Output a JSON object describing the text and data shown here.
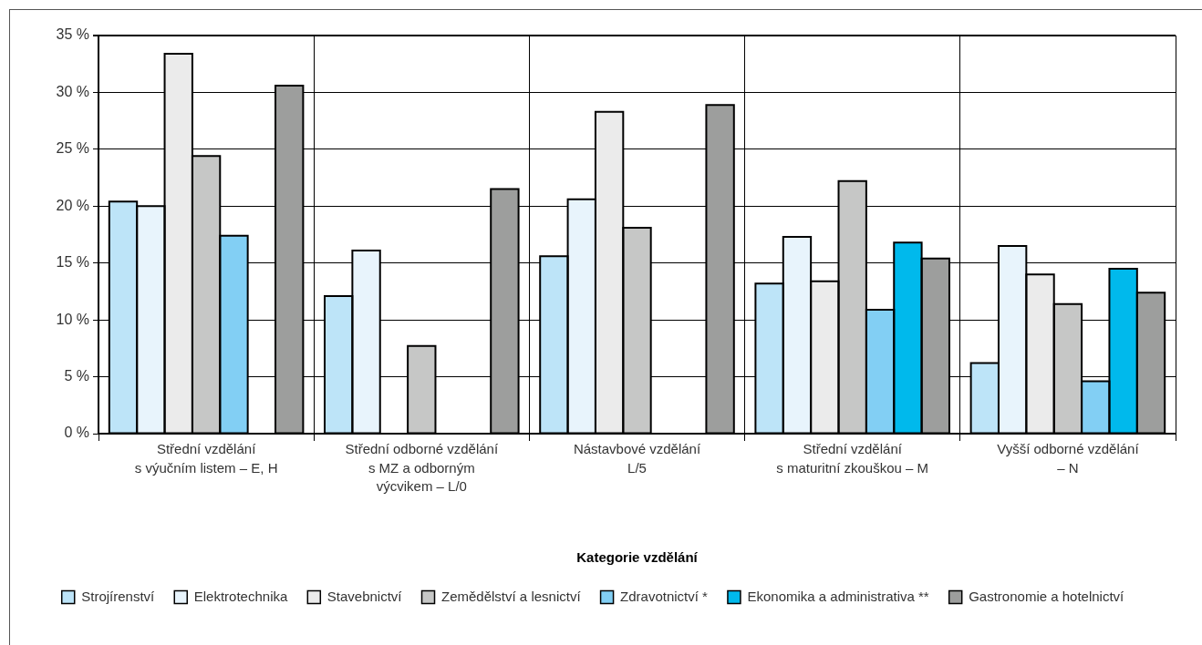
{
  "chart_data": {
    "type": "bar",
    "categories": [
      "Střední vzdělání\ns výučním listem – E, H",
      "Střední odborné vzdělání\ns MZ a odborným\nvýcvikem – L/0",
      "Nástavbové vzdělání\nL/5",
      "Střední vzdělání\ns maturitní zkouškou – M",
      "Vyšší odborné vzdělání\n– N"
    ],
    "xlabel": "Kategorie vzdělání",
    "series": [
      {
        "name": "Strojírenství",
        "color": "#bde4f8",
        "values": [
          20.4,
          12.1,
          15.6,
          13.2,
          6.2
        ]
      },
      {
        "name": "Elektrotechnika",
        "color": "#e8f4fc",
        "values": [
          20.0,
          16.1,
          20.6,
          17.3,
          16.5
        ]
      },
      {
        "name": "Stavebnictví",
        "color": "#ebebeb",
        "values": [
          33.4,
          null,
          28.3,
          13.4,
          14.0
        ]
      },
      {
        "name": "Zemědělství a lesnictví",
        "color": "#c6c7c6",
        "values": [
          24.4,
          7.7,
          18.1,
          22.2,
          11.4
        ]
      },
      {
        "name": "Zdravotnictví *",
        "color": "#82cff4",
        "values": [
          17.4,
          null,
          null,
          10.9,
          4.6
        ]
      },
      {
        "name": "Ekonomika a administrativa **",
        "color": "#00b9ec",
        "values": [
          null,
          null,
          null,
          16.8,
          14.5
        ]
      },
      {
        "name": "Gastronomie a hotelnictví",
        "color": "#9d9e9d",
        "values": [
          30.6,
          21.5,
          28.9,
          15.4,
          12.4
        ]
      }
    ],
    "ylim": [
      0,
      35
    ],
    "yticks": [
      {
        "value": 0,
        "label": "0 %"
      },
      {
        "value": 5,
        "label": "5 %"
      },
      {
        "value": 10,
        "label": "10 %"
      },
      {
        "value": 15,
        "label": "15 %"
      },
      {
        "value": 20,
        "label": "20 %"
      },
      {
        "value": 25,
        "label": "25 %"
      },
      {
        "value": 30,
        "label": "30 %"
      },
      {
        "value": 35,
        "label": "35 %"
      }
    ],
    "grid": true,
    "legend": "bottom"
  }
}
